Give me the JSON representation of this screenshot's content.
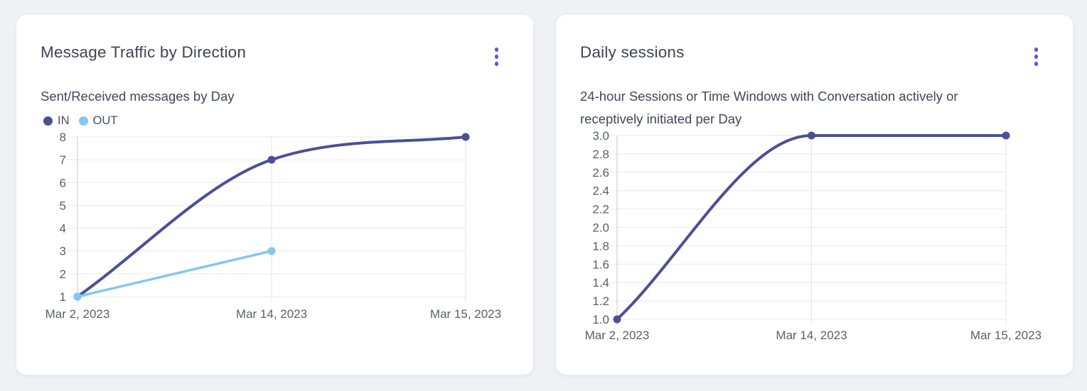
{
  "cards": [
    {
      "title": "Message Traffic by Direction",
      "subtitle": "Sent/Received messages by Day"
    },
    {
      "title": "Daily sessions",
      "subtitle": "24-hour Sessions or Time Windows with Conversation actively or receptively initiated per Day"
    }
  ],
  "chart_data": [
    {
      "type": "line",
      "title": "Message Traffic by Direction",
      "subtitle": "Sent/Received messages by Day",
      "categories": [
        "Mar 2, 2023",
        "Mar 14, 2023",
        "Mar 15, 2023"
      ],
      "series": [
        {
          "name": "IN",
          "color": "#4b4f96",
          "line_width": 4,
          "values": [
            1,
            7,
            8
          ]
        },
        {
          "name": "OUT",
          "color": "#85c5f2",
          "line_width": 3.5,
          "values": [
            1,
            3,
            null
          ]
        }
      ],
      "ylim": [
        1,
        8
      ],
      "yticks": [
        8,
        7,
        6,
        5,
        4,
        3,
        2,
        1
      ],
      "ytick_labels": [
        "8",
        "7",
        "6",
        "5",
        "4",
        "3",
        "2",
        "1"
      ],
      "xlabel": "",
      "ylabel": "",
      "grid": true,
      "smooth": "monotone",
      "legend_position": "top-left"
    },
    {
      "type": "line",
      "title": "Daily sessions",
      "subtitle": "24-hour Sessions or Time Windows with Conversation actively or receptively initiated per Day",
      "categories": [
        "Mar 2, 2023",
        "Mar 14, 2023",
        "Mar 15, 2023"
      ],
      "series": [
        {
          "name": "",
          "color": "#4b4f96",
          "line_width": 4,
          "values": [
            1.0,
            3.0,
            3.0
          ]
        }
      ],
      "ylim": [
        1.0,
        3.0
      ],
      "yticks": [
        3.0,
        2.8,
        2.6,
        2.4,
        2.2,
        2.0,
        1.8,
        1.6,
        1.4,
        1.2,
        1.0
      ],
      "ytick_labels": [
        "3.0",
        "2.8",
        "2.6",
        "2.4",
        "2.2",
        "2.0",
        "1.8",
        "1.6",
        "1.4",
        "1.2",
        "1.0"
      ],
      "xlabel": "",
      "ylabel": "",
      "grid": true,
      "smooth": "monotone",
      "legend_position": "none"
    }
  ],
  "icons": {
    "menu": "kebab-menu-icon"
  },
  "colors": {
    "page_bg": "#f0f1f5",
    "card_bg": "#ffffff",
    "accent": "#5b53f0",
    "title_text": "#3f4355",
    "subtitle_text": "#424657",
    "tick_text": "#5c5f67",
    "legend_text": "#4a4e5c",
    "grid_line": "#e9eaed",
    "axis_line": "#c6c7ca",
    "category_line": "#e3e4e7",
    "series_in": "#4b4f96",
    "series_out": "#85c5f2"
  }
}
